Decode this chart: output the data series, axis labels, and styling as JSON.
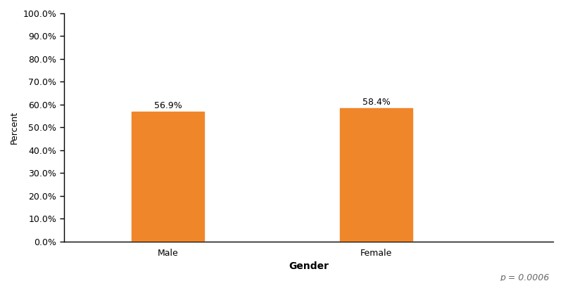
{
  "categories": [
    "Male",
    "Female"
  ],
  "values": [
    56.9,
    58.4
  ],
  "bar_color": "#F0862A",
  "bar_width": 0.35,
  "xlabel": "Gender",
  "ylabel": "Percent",
  "ylim": [
    0,
    100
  ],
  "yticks": [
    0,
    10,
    20,
    30,
    40,
    50,
    60,
    70,
    80,
    90,
    100
  ],
  "ytick_labels": [
    "0.0%",
    "10.0%",
    "20.0%",
    "30.0%",
    "40.0%",
    "50.0%",
    "60.0%",
    "70.0%",
    "80.0%",
    "90.0%",
    "100.0%"
  ],
  "bar_labels": [
    "56.9%",
    "58.4%"
  ],
  "p_value_text": "p = 0.0006",
  "label_fontsize": 9,
  "tick_fontsize": 9,
  "xlabel_fontsize": 10,
  "ylabel_fontsize": 9,
  "p_value_fontsize": 9,
  "background_color": "#ffffff"
}
